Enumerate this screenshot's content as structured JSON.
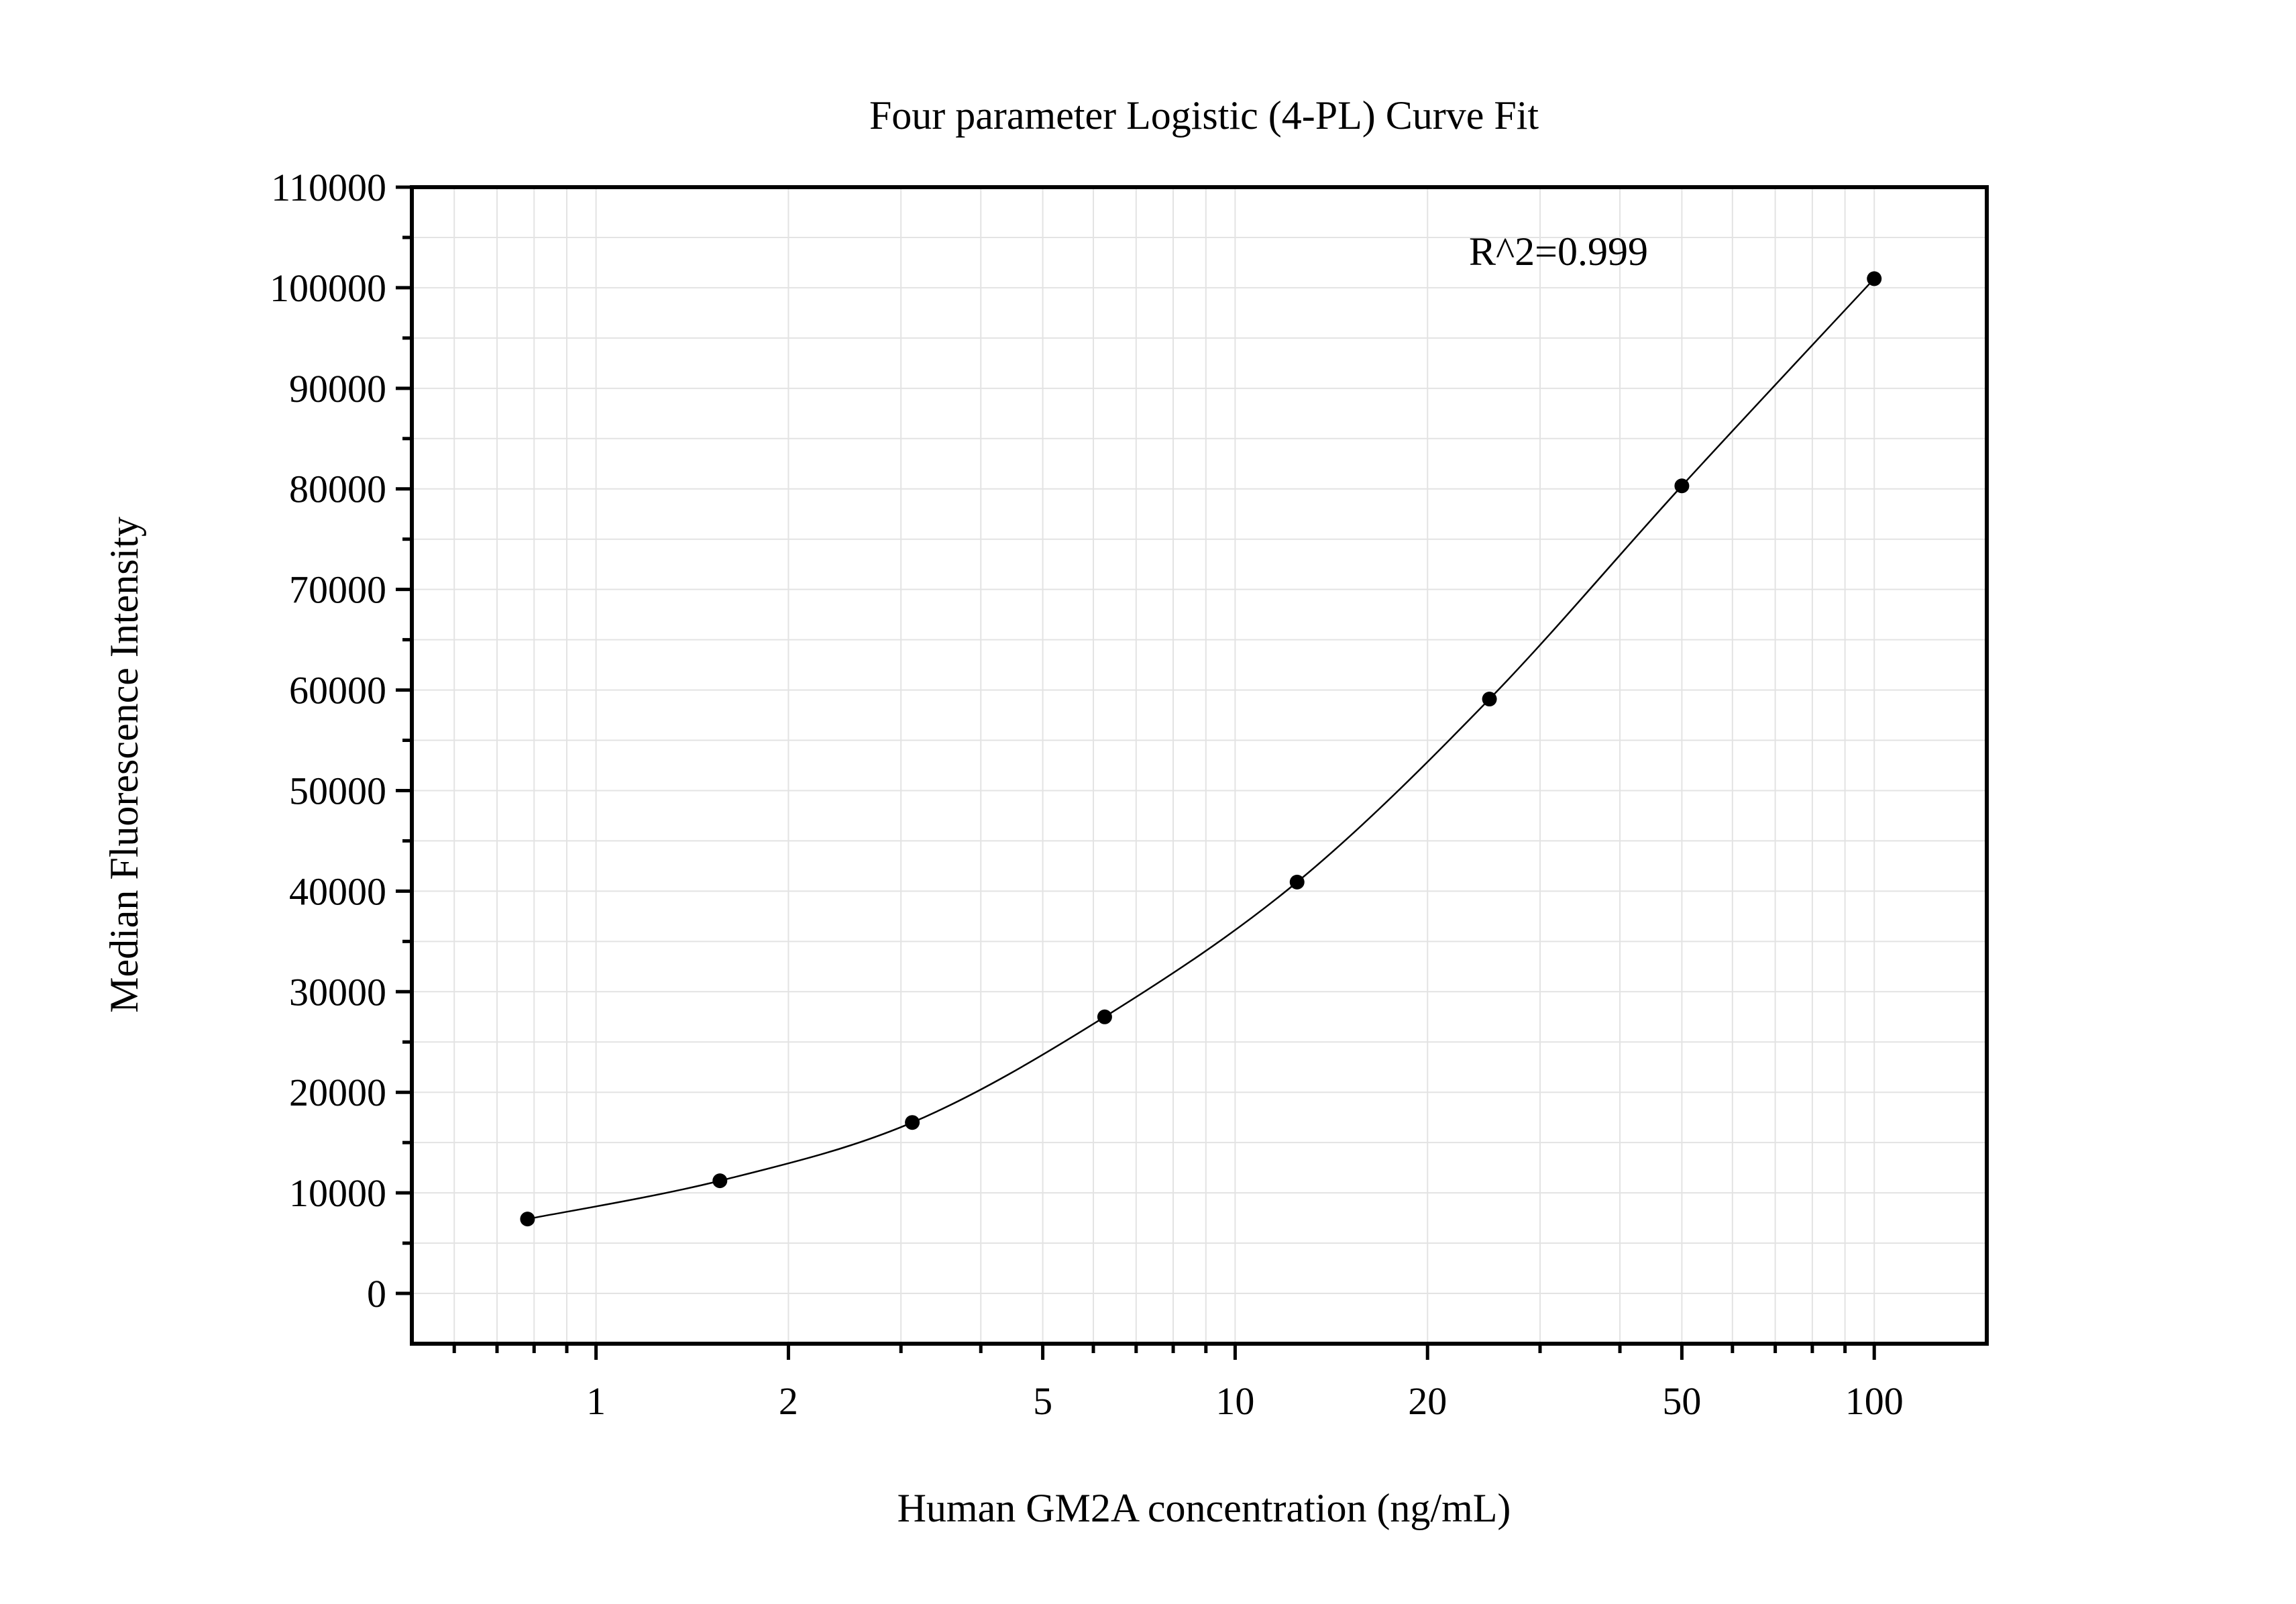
{
  "chart_data": {
    "type": "scatter",
    "title": "Four parameter Logistic (4-PL) Curve Fit",
    "xlabel": "Human GM2A concentration (ng/mL)",
    "ylabel": "Median Fluorescence Intensity",
    "annotation": "R^2=0.999",
    "x_scale": "log",
    "xlim": [
      0.515,
      150
    ],
    "ylim": [
      -5000,
      110000
    ],
    "x_ticks": [
      1,
      2,
      5,
      10,
      20,
      50,
      100
    ],
    "x_tick_labels": [
      "1",
      "2",
      "5",
      "10",
      "20",
      "50",
      "100"
    ],
    "y_ticks": [
      0,
      10000,
      20000,
      30000,
      40000,
      50000,
      60000,
      70000,
      80000,
      90000,
      100000,
      110000
    ],
    "y_tick_labels": [
      "0",
      "10000",
      "20000",
      "30000",
      "40000",
      "50000",
      "60000",
      "70000",
      "80000",
      "90000",
      "100000",
      "110000"
    ],
    "grid": true,
    "series": [
      {
        "x": [
          0.78125,
          1.5625,
          3.125,
          6.25,
          12.5,
          25,
          50,
          100
        ],
        "y": [
          7400,
          11200,
          17000,
          27500,
          40900,
          59100,
          80300,
          100900
        ],
        "marker": "circle",
        "line": "fitted curve",
        "color": "#000000"
      }
    ]
  }
}
